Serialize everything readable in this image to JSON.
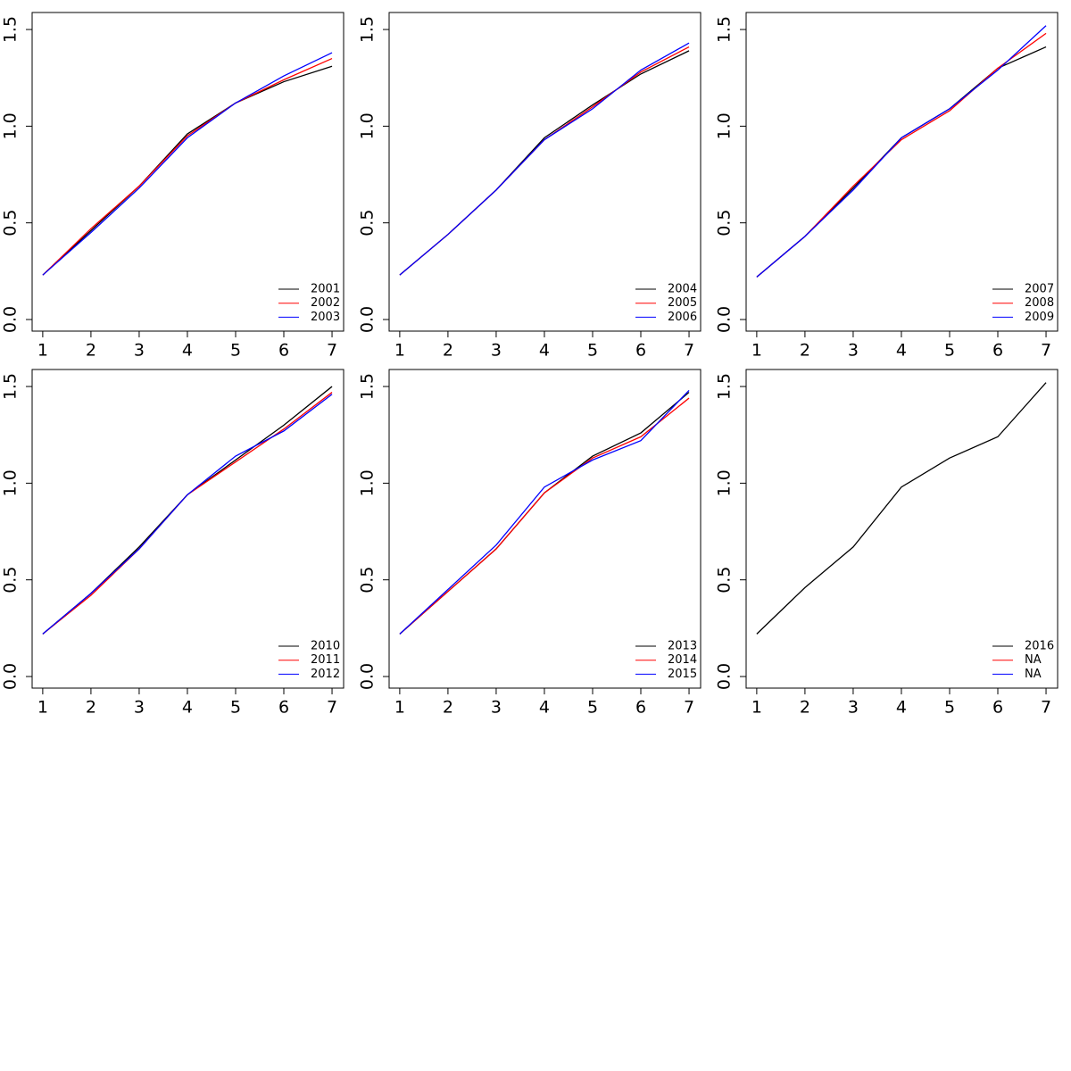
{
  "chart_data": [
    {
      "type": "line",
      "x": [
        1,
        2,
        3,
        4,
        5,
        6,
        7
      ],
      "xlim": [
        0.78,
        7.24
      ],
      "xticks": [
        1,
        2,
        3,
        4,
        5,
        6,
        7
      ],
      "ylim": [
        -0.06,
        1.588
      ],
      "yticks": [
        {
          "value": 0,
          "label": "0.0"
        },
        0.5,
        {
          "value": 1,
          "label": "1.0"
        },
        1.5
      ],
      "legend": "bottomright",
      "series": [
        {
          "name": "2001",
          "color": "#000000",
          "values": [
            0.23,
            0.46,
            0.69,
            0.96,
            1.12,
            1.23,
            1.31
          ]
        },
        {
          "name": "2002",
          "color": "#ff0000",
          "values": [
            0.23,
            0.47,
            0.69,
            0.95,
            1.12,
            1.24,
            1.35
          ]
        },
        {
          "name": "2003",
          "color": "#0000ff",
          "values": [
            0.23,
            0.45,
            0.68,
            0.94,
            1.12,
            1.26,
            1.38
          ]
        }
      ]
    },
    {
      "type": "line",
      "x": [
        1,
        2,
        3,
        4,
        5,
        6,
        7
      ],
      "xlim": [
        0.78,
        7.24
      ],
      "xticks": [
        1,
        2,
        3,
        4,
        5,
        6,
        7
      ],
      "ylim": [
        -0.06,
        1.588
      ],
      "yticks": [
        {
          "value": 0,
          "label": "0.0"
        },
        0.5,
        {
          "value": 1,
          "label": "1.0"
        },
        1.5
      ],
      "legend": "bottomright",
      "series": [
        {
          "name": "2004",
          "color": "#000000",
          "values": [
            0.23,
            0.44,
            0.67,
            0.94,
            1.11,
            1.27,
            1.39
          ]
        },
        {
          "name": "2005",
          "color": "#ff0000",
          "values": [
            0.23,
            0.44,
            0.67,
            0.93,
            1.1,
            1.28,
            1.41
          ]
        },
        {
          "name": "2006",
          "color": "#0000ff",
          "values": [
            0.23,
            0.44,
            0.67,
            0.93,
            1.09,
            1.29,
            1.43
          ]
        }
      ]
    },
    {
      "type": "line",
      "x": [
        1,
        2,
        3,
        4,
        5,
        6,
        7
      ],
      "xlim": [
        0.78,
        7.24
      ],
      "xticks": [
        1,
        2,
        3,
        4,
        5,
        6,
        7
      ],
      "ylim": [
        -0.06,
        1.588
      ],
      "yticks": [
        {
          "value": 0,
          "label": "0.0"
        },
        0.5,
        {
          "value": 1,
          "label": "1.0"
        },
        1.5
      ],
      "legend": "bottomright",
      "series": [
        {
          "name": "2007",
          "color": "#000000",
          "values": [
            0.22,
            0.43,
            0.68,
            0.94,
            1.09,
            1.3,
            1.41
          ]
        },
        {
          "name": "2008",
          "color": "#ff0000",
          "values": [
            0.22,
            0.43,
            0.69,
            0.93,
            1.08,
            1.3,
            1.48
          ]
        },
        {
          "name": "2009",
          "color": "#0000ff",
          "values": [
            0.22,
            0.43,
            0.67,
            0.94,
            1.09,
            1.29,
            1.52
          ]
        }
      ]
    },
    {
      "type": "line",
      "x": [
        1,
        2,
        3,
        4,
        5,
        6,
        7
      ],
      "xlim": [
        0.78,
        7.24
      ],
      "xticks": [
        1,
        2,
        3,
        4,
        5,
        6,
        7
      ],
      "ylim": [
        -0.06,
        1.588
      ],
      "yticks": [
        {
          "value": 0,
          "label": "0.0"
        },
        0.5,
        {
          "value": 1,
          "label": "1.0"
        },
        1.5
      ],
      "legend": "bottomright",
      "series": [
        {
          "name": "2010",
          "color": "#000000",
          "values": [
            0.22,
            0.43,
            0.67,
            0.94,
            1.12,
            1.3,
            1.5
          ]
        },
        {
          "name": "2011",
          "color": "#ff0000",
          "values": [
            0.22,
            0.42,
            0.66,
            0.94,
            1.11,
            1.28,
            1.47
          ]
        },
        {
          "name": "2012",
          "color": "#0000ff",
          "values": [
            0.22,
            0.43,
            0.66,
            0.94,
            1.14,
            1.27,
            1.46
          ]
        }
      ]
    },
    {
      "type": "line",
      "x": [
        1,
        2,
        3,
        4,
        5,
        6,
        7
      ],
      "xlim": [
        0.78,
        7.24
      ],
      "xticks": [
        1,
        2,
        3,
        4,
        5,
        6,
        7
      ],
      "ylim": [
        -0.06,
        1.588
      ],
      "yticks": [
        {
          "value": 0,
          "label": "0.0"
        },
        0.5,
        {
          "value": 1,
          "label": "1.0"
        },
        1.5
      ],
      "legend": "bottomright",
      "series": [
        {
          "name": "2013",
          "color": "#000000",
          "values": [
            0.22,
            0.44,
            0.66,
            0.95,
            1.14,
            1.26,
            1.47
          ]
        },
        {
          "name": "2014",
          "color": "#ff0000",
          "values": [
            0.22,
            0.44,
            0.66,
            0.95,
            1.13,
            1.24,
            1.44
          ]
        },
        {
          "name": "2015",
          "color": "#0000ff",
          "values": [
            0.22,
            0.45,
            0.68,
            0.98,
            1.12,
            1.22,
            1.48
          ]
        }
      ]
    },
    {
      "type": "line",
      "x": [
        1,
        2,
        3,
        4,
        5,
        6,
        7
      ],
      "xlim": [
        0.78,
        7.24
      ],
      "xticks": [
        1,
        2,
        3,
        4,
        5,
        6,
        7
      ],
      "ylim": [
        -0.06,
        1.588
      ],
      "yticks": [
        {
          "value": 0,
          "label": "0.0"
        },
        0.5,
        {
          "value": 1,
          "label": "1.0"
        },
        1.5
      ],
      "legend": "bottomright",
      "series": [
        {
          "name": "2016",
          "color": "#000000",
          "values": [
            0.22,
            0.46,
            0.67,
            0.98,
            1.13,
            1.24,
            1.52
          ]
        },
        {
          "name": "NA",
          "color": "#ff0000",
          "values": [
            null,
            null,
            null,
            null,
            null,
            null,
            null
          ]
        },
        {
          "name": "NA",
          "color": "#0000ff",
          "values": [
            null,
            null,
            null,
            null,
            null,
            null,
            null
          ]
        }
      ]
    }
  ]
}
